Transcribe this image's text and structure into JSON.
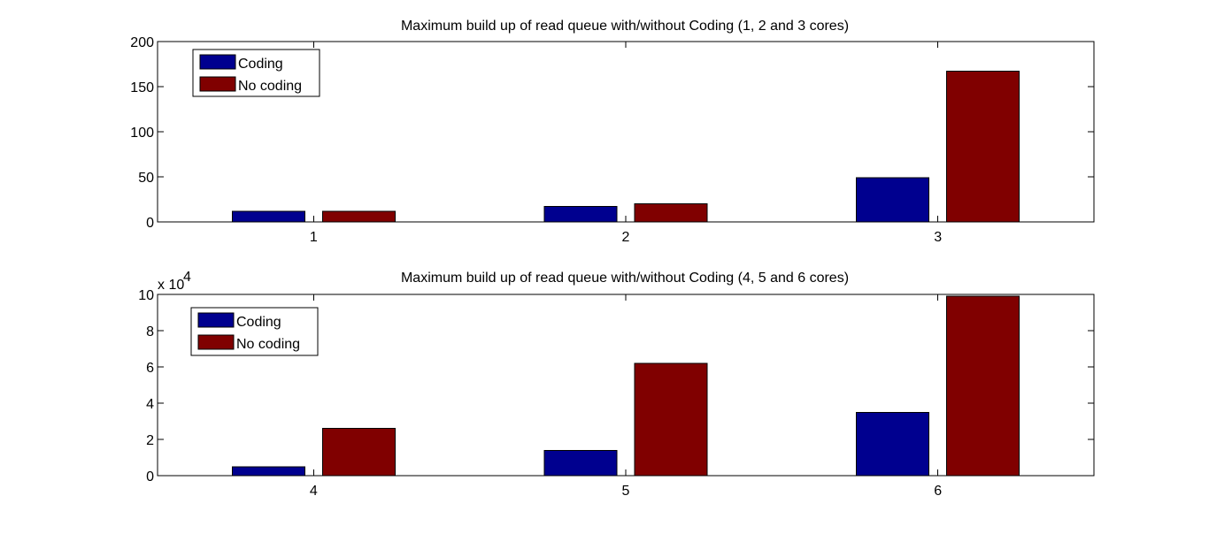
{
  "colors": {
    "coding": "#00008f",
    "no_coding": "#800000"
  },
  "chart_data": [
    {
      "type": "bar",
      "title": "Maximum build up of read queue with/without Coding (1, 2 and 3 cores)",
      "categories": [
        "1",
        "2",
        "3"
      ],
      "series": [
        {
          "name": "Coding",
          "values": [
            12,
            17,
            49
          ]
        },
        {
          "name": "No coding",
          "values": [
            12,
            20,
            167
          ]
        }
      ],
      "ylim": [
        0,
        200
      ],
      "yticks": [
        0,
        50,
        100,
        150,
        200
      ],
      "ytick_labels": [
        "0",
        "50",
        "100",
        "150",
        "200"
      ],
      "y_exponent": "",
      "legend": "top-left",
      "grid": false
    },
    {
      "type": "bar",
      "title": "Maximum build up of read queue with/without Coding (4, 5 and 6 cores)",
      "categories": [
        "4",
        "5",
        "6"
      ],
      "series": [
        {
          "name": "Coding",
          "values": [
            5000,
            14000,
            35000
          ]
        },
        {
          "name": "No coding",
          "values": [
            26000,
            62000,
            99000
          ]
        }
      ],
      "ylim": [
        0,
        100000
      ],
      "yticks": [
        0,
        20000,
        40000,
        60000,
        80000,
        100000
      ],
      "ytick_labels": [
        "0",
        "2",
        "4",
        "6",
        "8",
        "10"
      ],
      "y_exponent": "x 10",
      "y_exponent_power": "4",
      "legend": "top-left",
      "grid": false
    }
  ]
}
